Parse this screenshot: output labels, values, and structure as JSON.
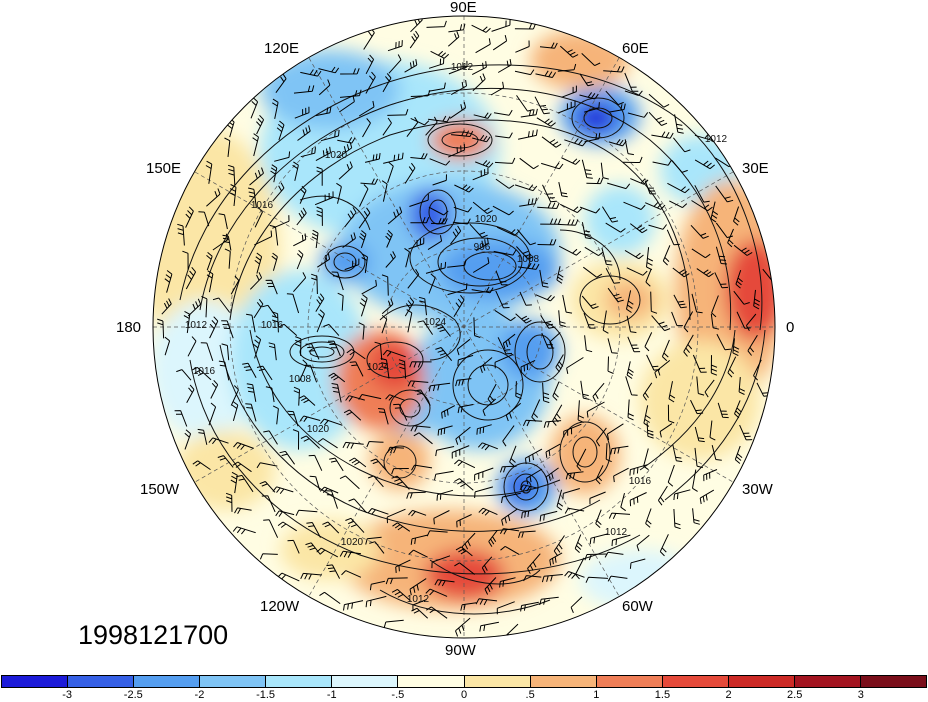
{
  "date_stamp": "1998121700",
  "longitude_labels": {
    "lon_90e": "90E",
    "lon_60e": "60E",
    "lon_30e": "30E",
    "lon_0": "0",
    "lon_30w": "30W",
    "lon_60w": "60W",
    "lon_90w": "90W",
    "lon_120w": "120W",
    "lon_150w": "150W",
    "lon_180": "180",
    "lon_150e": "150E",
    "lon_120e": "120E"
  },
  "colorbar": {
    "labels": [
      "-3",
      "-2.5",
      "-2",
      "-1.5",
      "-1",
      "-.5",
      "0",
      ".5",
      "1",
      "1.5",
      "2",
      "2.5",
      "3"
    ],
    "colors": [
      "#1c1bd9",
      "#3560e6",
      "#559ef0",
      "#7fc4f5",
      "#a9e6fb",
      "#dcf6fd",
      "#fffde3",
      "#fbe6a6",
      "#f6b479",
      "#ef7e57",
      "#e54a3a",
      "#cc2a26",
      "#a31420",
      "#7a0e1a"
    ]
  },
  "isobar_labels": [
    "1012",
    "1020",
    "1016",
    "1012",
    "1020",
    "996",
    "1008",
    "1024",
    "1008",
    "1020",
    "1024",
    "1012",
    "1016",
    "1012",
    "1020",
    "1016",
    "1012",
    "1016"
  ]
}
